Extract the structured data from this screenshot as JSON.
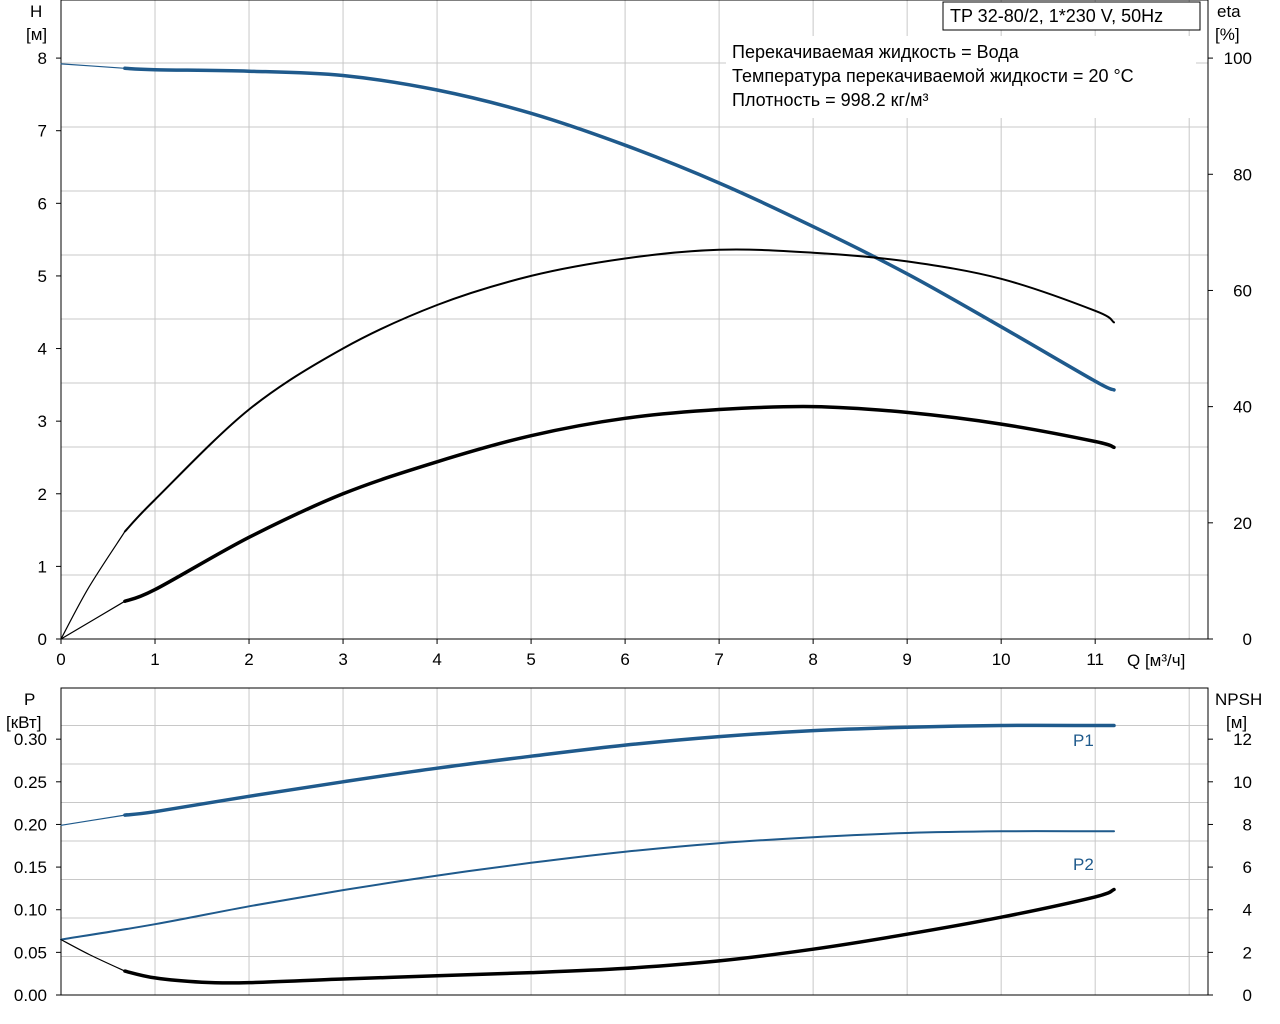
{
  "header": {
    "model": "TP 32-80/2, 1*230 V, 50Hz",
    "info_lines": [
      "Перекачиваемая жидкость = Вода",
      "Температура перекачиваемой жидкости = 20 °C",
      "Плотность = 998.2 кг/м³"
    ]
  },
  "colors": {
    "pump_blue": "#1f5a8c",
    "black": "#000000",
    "grid": "#c8c8c8"
  },
  "chart_data": [
    {
      "type": "line",
      "title": "",
      "xlabel": "Q [м³/ч]",
      "x_ticks": [
        "0",
        "1",
        "2",
        "3",
        "4",
        "5",
        "6",
        "7",
        "8",
        "9",
        "10",
        "11"
      ],
      "xlim": [
        0,
        12.2
      ],
      "left_axis": {
        "label_line1": "H",
        "label_line2": "[м]",
        "ylim": [
          0,
          8.8
        ],
        "ticks": [
          "0",
          "1",
          "2",
          "3",
          "4",
          "5",
          "6",
          "7",
          "8"
        ]
      },
      "right_axis": {
        "label_line1": "eta",
        "label_line2": "[%]",
        "ylim": [
          0,
          110
        ],
        "ticks": [
          "0",
          "20",
          "40",
          "60",
          "80",
          "100"
        ]
      },
      "series": [
        {
          "key": "H",
          "axis": "left",
          "color": "#1f5a8c",
          "x": [
            0.68,
            1,
            2,
            3,
            4,
            5,
            6,
            7,
            8,
            9,
            10,
            11,
            11.2
          ],
          "y": [
            7.86,
            7.84,
            7.82,
            7.76,
            7.56,
            7.24,
            6.8,
            6.28,
            5.68,
            5.03,
            4.3,
            3.55,
            3.43
          ]
        },
        {
          "key": "H_ext",
          "axis": "left",
          "color": "#1f5a8c",
          "thin": true,
          "x": [
            0,
            0.68
          ],
          "y": [
            7.92,
            7.86
          ]
        },
        {
          "key": "eta_pump",
          "axis": "right",
          "color": "#000000",
          "x": [
            0.68,
            1,
            2,
            3,
            4,
            5,
            6,
            7,
            8,
            9,
            10,
            11,
            11.2
          ],
          "y": [
            18.5,
            24,
            39.5,
            50,
            57.5,
            62.5,
            65.5,
            67,
            66.5,
            65,
            62,
            56.5,
            54.5
          ]
        },
        {
          "key": "eta_pump_ext",
          "axis": "right",
          "color": "#000000",
          "thin": true,
          "x": [
            0,
            0.3,
            0.68
          ],
          "y": [
            0,
            9,
            18.5
          ]
        },
        {
          "key": "eta_total",
          "axis": "right",
          "color": "#000000",
          "x": [
            0.68,
            1,
            2,
            3,
            4,
            5,
            6,
            7,
            8,
            9,
            10,
            11,
            11.2
          ],
          "y": [
            6.5,
            8.5,
            17.5,
            25,
            30.5,
            35,
            38,
            39.5,
            40,
            39,
            37,
            34,
            33
          ]
        },
        {
          "key": "eta_total_ext",
          "axis": "right",
          "color": "#000000",
          "thin": true,
          "x": [
            0,
            0.68
          ],
          "y": [
            0,
            6.5
          ]
        }
      ]
    },
    {
      "type": "line",
      "title": "",
      "xlabel": "",
      "xlim": [
        0,
        12.2
      ],
      "left_axis": {
        "label_line1": "P",
        "label_line2": "[кВт]",
        "ylim": [
          0,
          0.36
        ],
        "ticks": [
          "0.00",
          "0.05",
          "0.10",
          "0.15",
          "0.20",
          "0.25",
          "0.30"
        ]
      },
      "right_axis": {
        "label_line1": "NPSH",
        "label_line2": "[м]",
        "ylim": [
          0,
          14.4
        ],
        "ticks": [
          "0",
          "2",
          "4",
          "6",
          "8",
          "10",
          "12"
        ]
      },
      "series": [
        {
          "key": "P1",
          "name": "P1",
          "axis": "left",
          "color": "#1f5a8c",
          "x": [
            0.68,
            1,
            2,
            3,
            4,
            5,
            6,
            7,
            8,
            9,
            10,
            11,
            11.2
          ],
          "y": [
            0.211,
            0.215,
            0.233,
            0.25,
            0.266,
            0.28,
            0.293,
            0.303,
            0.31,
            0.314,
            0.316,
            0.316,
            0.316
          ]
        },
        {
          "key": "P1_ext",
          "axis": "left",
          "color": "#1f5a8c",
          "thin": true,
          "x": [
            0,
            0.68
          ],
          "y": [
            0.199,
            0.211
          ]
        },
        {
          "key": "P2",
          "name": "P2",
          "axis": "left",
          "color": "#1f5a8c",
          "thin": true,
          "x": [
            0,
            1,
            2,
            3,
            4,
            5,
            6,
            7,
            8,
            9,
            10,
            11,
            11.2
          ],
          "y": [
            0.065,
            0.083,
            0.104,
            0.123,
            0.14,
            0.155,
            0.168,
            0.178,
            0.185,
            0.19,
            0.192,
            0.192,
            0.192
          ]
        },
        {
          "key": "NPSH",
          "axis": "right",
          "color": "#000000",
          "x": [
            0.68,
            1,
            1.5,
            2,
            3,
            4,
            5,
            6,
            7,
            8,
            9,
            10,
            11,
            11.2
          ],
          "y": [
            1.12,
            0.8,
            0.6,
            0.58,
            0.75,
            0.9,
            1.05,
            1.25,
            1.6,
            2.15,
            2.85,
            3.65,
            4.6,
            4.95
          ]
        },
        {
          "key": "NPSH_ext",
          "axis": "right",
          "color": "#000000",
          "thin": true,
          "x": [
            0,
            0.3,
            0.68
          ],
          "y": [
            2.6,
            1.9,
            1.12
          ]
        }
      ]
    }
  ]
}
